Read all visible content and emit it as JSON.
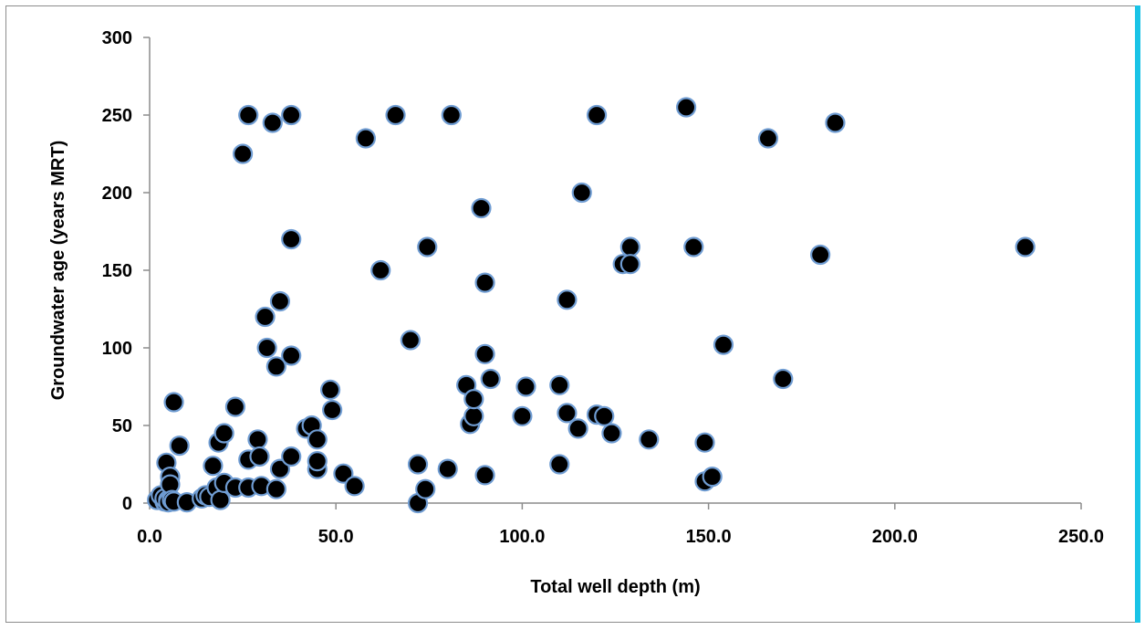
{
  "chart_data": {
    "type": "scatter",
    "xlabel": "Total well depth (m)",
    "ylabel": "Groundwater age (years MRT)",
    "xlim": [
      0,
      250
    ],
    "ylim": [
      0,
      300
    ],
    "x_ticks": [
      "0.0",
      "50.0",
      "100.0",
      "150.0",
      "200.0",
      "250.0"
    ],
    "y_ticks": [
      "0",
      "50",
      "100",
      "150",
      "200",
      "250",
      "300"
    ],
    "grid": false,
    "legend": "none",
    "marker_fill": "#000000",
    "marker_edge": "#6f9cd2",
    "series": [
      {
        "points": [
          [
            2,
            2
          ],
          [
            3,
            5
          ],
          [
            4,
            1
          ],
          [
            4,
            3
          ],
          [
            5,
            2
          ],
          [
            5,
            0.5
          ],
          [
            4.5,
            26
          ],
          [
            5.5,
            17
          ],
          [
            5.5,
            12
          ],
          [
            6,
            2
          ],
          [
            6.5,
            1
          ],
          [
            6.5,
            65
          ],
          [
            8,
            37
          ],
          [
            10,
            0.5
          ],
          [
            14,
            3
          ],
          [
            15,
            5
          ],
          [
            16,
            4
          ],
          [
            17,
            24
          ],
          [
            18,
            10
          ],
          [
            18.5,
            39
          ],
          [
            19,
            2
          ],
          [
            20,
            13
          ],
          [
            20,
            45
          ],
          [
            23,
            62
          ],
          [
            23,
            10
          ],
          [
            25,
            225
          ],
          [
            26.5,
            250
          ],
          [
            26.5,
            10
          ],
          [
            26.5,
            28
          ],
          [
            29,
            41
          ],
          [
            29.5,
            30
          ],
          [
            30,
            11
          ],
          [
            31,
            120
          ],
          [
            31.5,
            100
          ],
          [
            33,
            245
          ],
          [
            34,
            9
          ],
          [
            34,
            88
          ],
          [
            35,
            130
          ],
          [
            35,
            22
          ],
          [
            38,
            250
          ],
          [
            38,
            170
          ],
          [
            38,
            30
          ],
          [
            38,
            95
          ],
          [
            42,
            48
          ],
          [
            43.5,
            50
          ],
          [
            45,
            22
          ],
          [
            45,
            27
          ],
          [
            45,
            41
          ],
          [
            48.5,
            73
          ],
          [
            49,
            60
          ],
          [
            52,
            19
          ],
          [
            55,
            11
          ],
          [
            58,
            235
          ],
          [
            62,
            150
          ],
          [
            66,
            250
          ],
          [
            70,
            105
          ],
          [
            72,
            25
          ],
          [
            72,
            0
          ],
          [
            74,
            9
          ],
          [
            74.5,
            165
          ],
          [
            80,
            22
          ],
          [
            81,
            250
          ],
          [
            85,
            76
          ],
          [
            86,
            51
          ],
          [
            87,
            56
          ],
          [
            87,
            67
          ],
          [
            89,
            190
          ],
          [
            90,
            142
          ],
          [
            90,
            96
          ],
          [
            90,
            18
          ],
          [
            91.5,
            80
          ],
          [
            100,
            56
          ],
          [
            101,
            75
          ],
          [
            110,
            76
          ],
          [
            110,
            25
          ],
          [
            112,
            131
          ],
          [
            112,
            58
          ],
          [
            115,
            48
          ],
          [
            116,
            200
          ],
          [
            120,
            250
          ],
          [
            120,
            57
          ],
          [
            122,
            56
          ],
          [
            124,
            45
          ],
          [
            127,
            154
          ],
          [
            129,
            165
          ],
          [
            129,
            154
          ],
          [
            134,
            41
          ],
          [
            144,
            255
          ],
          [
            146,
            165
          ],
          [
            149,
            39
          ],
          [
            149,
            14
          ],
          [
            151,
            17
          ],
          [
            154,
            102
          ],
          [
            166,
            235
          ],
          [
            170,
            80
          ],
          [
            180,
            160
          ],
          [
            184,
            245
          ],
          [
            235,
            165
          ]
        ]
      }
    ]
  }
}
